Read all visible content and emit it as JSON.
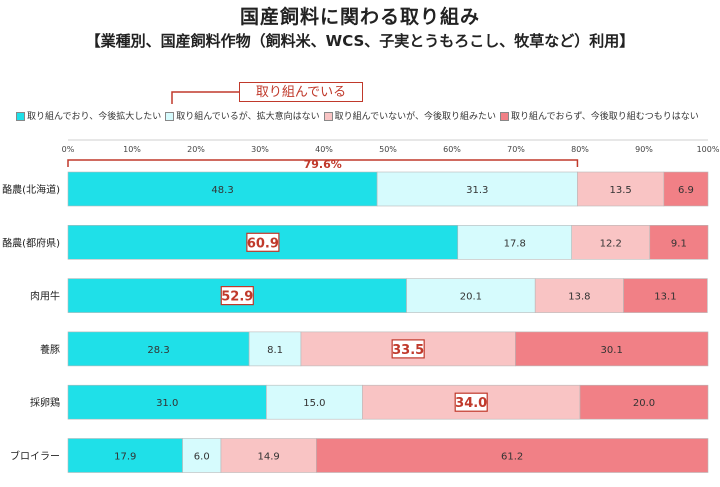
{
  "title": "国産飼料に関わる取り組み",
  "subtitle": "【業種別、国産飼料作物（飼料米、WCS、子実とうもろこし、牧草など）利用】",
  "annotation": {
    "label": "取り組んでいる"
  },
  "bracket": {
    "label": "79.6%"
  },
  "colors": [
    "#1fe0e8",
    "#d6fbfd",
    "#f9c4c4",
    "#f18086"
  ],
  "chart_data": {
    "type": "bar",
    "orientation": "horizontal",
    "stacked": "percent",
    "categories": [
      "酪農(北海道)",
      "酪農(都府県)",
      "肉用牛",
      "養豚",
      "採卵鶏",
      "ブロイラー"
    ],
    "series": [
      {
        "name": "取り組んでおり、今後拡大したい",
        "values": [
          48.3,
          60.9,
          52.9,
          28.3,
          31.0,
          17.9
        ]
      },
      {
        "name": "取り組んでいるが、拡大意向はない",
        "values": [
          31.3,
          17.8,
          20.1,
          8.1,
          15.0,
          6.0
        ]
      },
      {
        "name": "取り組んでいないが、今後取り組みたい",
        "values": [
          13.5,
          12.2,
          13.8,
          33.5,
          34.0,
          14.9
        ]
      },
      {
        "name": "取り組んでおらず、今後取り組むつもりはない",
        "values": [
          6.9,
          9.1,
          13.1,
          30.1,
          20.0,
          61.2
        ]
      }
    ],
    "value_labels": [
      [
        "48.3",
        "31.3",
        "13.5",
        "6.9"
      ],
      [
        "60.9",
        "17.8",
        "12.2",
        "9.1"
      ],
      [
        "52.9",
        "20.1",
        "13.8",
        "13.1"
      ],
      [
        "28.3",
        "8.1",
        "33.5",
        "30.1"
      ],
      [
        "31.0",
        "15.0",
        "34.0",
        "20.0"
      ],
      [
        "17.9",
        "6.0",
        "14.9",
        "61.2"
      ]
    ],
    "highlighted_labels": [
      [
        1,
        0
      ],
      [
        2,
        0
      ],
      [
        3,
        2
      ],
      [
        4,
        2
      ]
    ],
    "xlim": [
      0,
      100
    ],
    "xticks": [
      "0%",
      "10%",
      "20%",
      "30%",
      "40%",
      "50%",
      "60%",
      "70%",
      "80%",
      "90%",
      "100%"
    ],
    "legend_position": "top"
  }
}
